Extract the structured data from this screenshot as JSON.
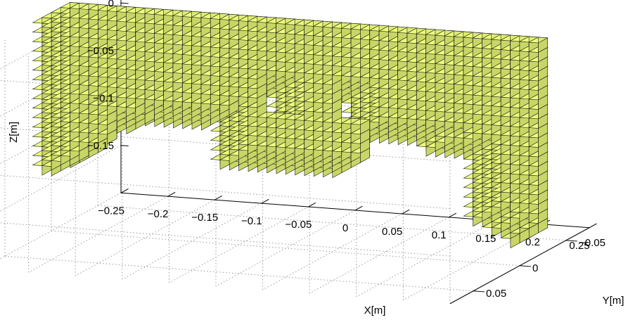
{
  "chart_data": {
    "type": "voxel-3d",
    "voxel_color": "#eeff7a",
    "edge_color": "#1a1a1a",
    "grid": true,
    "x_axis": {
      "label": "X[m]",
      "ticks": [
        {
          "value": -0.25,
          "label": "−0.25"
        },
        {
          "value": -0.2,
          "label": "−0.2"
        },
        {
          "value": -0.15,
          "label": "−0.15"
        },
        {
          "value": -0.1,
          "label": "−0.1"
        },
        {
          "value": -0.05,
          "label": "−0.05"
        },
        {
          "value": 0,
          "label": "0"
        },
        {
          "value": 0.05,
          "label": "0.05"
        },
        {
          "value": 0.1,
          "label": "0.1"
        },
        {
          "value": 0.15,
          "label": "0.15"
        },
        {
          "value": 0.2,
          "label": "0.2"
        },
        {
          "value": 0.25,
          "label": "0.25"
        }
      ]
    },
    "y_axis": {
      "label": "Y[m]",
      "ticks": [
        {
          "value": -0.05,
          "label": "−0.05"
        },
        {
          "value": 0,
          "label": "0"
        },
        {
          "value": 0.05,
          "label": "0.05"
        }
      ]
    },
    "z_axis": {
      "label": "Z[m]",
      "ticks": [
        {
          "value": 0,
          "label": "0"
        },
        {
          "value": -0.05,
          "label": "−0.05"
        },
        {
          "value": -0.1,
          "label": "−0.1"
        },
        {
          "value": -0.15,
          "label": "−0.15"
        }
      ]
    }
  }
}
